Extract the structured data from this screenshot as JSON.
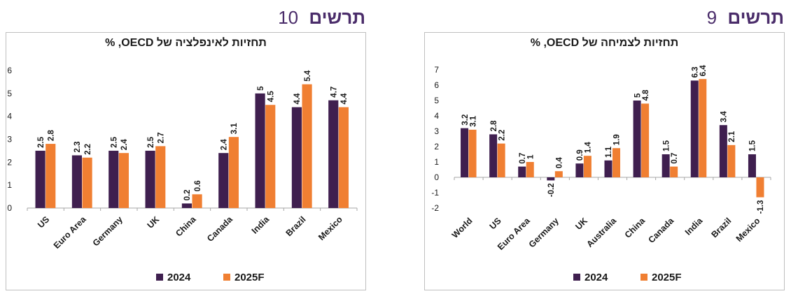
{
  "colors": {
    "series_2024": "#3f1f4f",
    "series_2025": "#f07f32",
    "figure_label": "#4a2c6a"
  },
  "figures": [
    {
      "label_word": "תרשים",
      "label_num": "10"
    },
    {
      "label_word": "תרשים",
      "label_num": "9"
    }
  ],
  "chart_data": [
    {
      "type": "bar",
      "title": "תחזיות לאינפלציה של OECD, %",
      "categories": [
        "US",
        "Euro Area",
        "Germany",
        "UK",
        "China",
        "Canada",
        "India",
        "Brazil",
        "Mexico"
      ],
      "series": [
        {
          "name": "2024",
          "values": [
            2.5,
            2.3,
            2.5,
            2.5,
            0.2,
            2.4,
            5,
            4.4,
            4.7
          ]
        },
        {
          "name": "2025F",
          "values": [
            2.8,
            2.2,
            2.4,
            2.7,
            0.6,
            3.1,
            4.5,
            5.4,
            4.4
          ]
        }
      ],
      "ylim": [
        0,
        6
      ],
      "yticks": [
        0,
        1,
        2,
        3,
        4,
        5,
        6
      ],
      "grid": false,
      "legend": "bottom-center"
    },
    {
      "type": "bar",
      "title": "תחזיות לצמיחה של OECD, %",
      "categories": [
        "World",
        "US",
        "Euro Area",
        "Germany",
        "UK",
        "Australia",
        "China",
        "Canada",
        "India",
        "Brazil",
        "Mexico"
      ],
      "series": [
        {
          "name": "2024",
          "values": [
            3.2,
            2.8,
            0.7,
            -0.2,
            0.9,
            1.1,
            5,
            1.5,
            6.3,
            3.4,
            1.5
          ]
        },
        {
          "name": "2025F",
          "values": [
            3.1,
            2.2,
            1,
            0.4,
            1.4,
            1.9,
            4.8,
            0.7,
            6.4,
            2.1,
            -1.3
          ]
        }
      ],
      "ylim": [
        -2,
        7
      ],
      "yticks": [
        -2,
        -1,
        0,
        1,
        2,
        3,
        4,
        5,
        6,
        7
      ],
      "grid": false,
      "legend": "bottom-center"
    }
  ]
}
